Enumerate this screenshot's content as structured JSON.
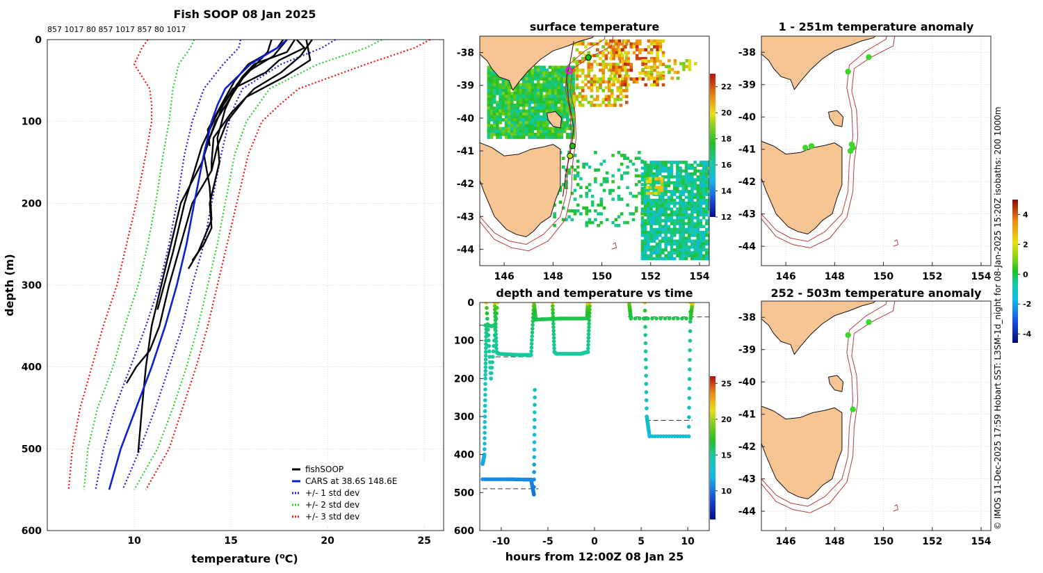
{
  "chart_data": [
    {
      "type": "line",
      "title": "Fish SOOP 08 Jan 2025",
      "top_labels": "857 1017 80 857 1017 857 80 1017",
      "xlabel": "temperature (",
      "xlabel_sup": "o",
      "xlabel_unit": "C)",
      "ylabel": "depth (m)",
      "xlim": [
        5.5,
        26
      ],
      "ylim": [
        600,
        0
      ],
      "xticks": [
        "10",
        "15",
        "20",
        "25"
      ],
      "yticks": [
        "0",
        "100",
        "200",
        "300",
        "400",
        "500",
        "600"
      ],
      "grid": true,
      "legend": [
        "fishSOOP",
        "CARS at 38.6S 148.6E",
        "+/- 1 std dev",
        "+/- 2 std dev",
        "+/- 3 std dev"
      ],
      "colors": {
        "fishsoop": "#000000",
        "cars": "#0a1fd6",
        "std1": "#1a1adf",
        "std2": "#22d422",
        "std3": "#f01010"
      },
      "depths": [
        0,
        10,
        30,
        60,
        80,
        100,
        140,
        200,
        250,
        300,
        350,
        400,
        450,
        500,
        550
      ],
      "cars_mean": [
        17.9,
        17.4,
        16.0,
        14.7,
        14.3,
        14.0,
        13.6,
        13.1,
        12.7,
        12.2,
        11.6,
        10.9,
        10.1,
        9.3,
        8.7
      ],
      "std1_low": [
        15.5,
        15.4,
        14.6,
        13.6,
        13.3,
        13.0,
        12.6,
        12.2,
        11.8,
        11.3,
        10.6,
        9.8,
        9.0,
        8.4,
        8.0
      ],
      "std1_high": [
        20.4,
        19.7,
        17.6,
        15.6,
        15.2,
        14.9,
        14.5,
        14.0,
        13.6,
        13.0,
        12.5,
        11.8,
        11.1,
        10.3,
        9.4
      ],
      "std2_low": [
        13.1,
        12.9,
        12.3,
        12.0,
        11.9,
        11.8,
        11.5,
        11.1,
        10.7,
        10.2,
        9.5,
        8.9,
        8.1,
        7.6,
        7.4
      ],
      "std2_high": [
        22.8,
        22.0,
        19.5,
        17.0,
        16.4,
        15.8,
        15.2,
        14.7,
        14.3,
        13.8,
        13.3,
        12.7,
        12.0,
        11.2,
        10.0
      ],
      "std3_low": [
        10.7,
        10.4,
        10.0,
        10.8,
        10.9,
        10.9,
        10.6,
        10.1,
        9.6,
        9.1,
        8.4,
        7.8,
        7.2,
        6.8,
        6.6
      ],
      "std3_high": [
        25.3,
        24.5,
        22.0,
        18.5,
        17.5,
        16.6,
        15.9,
        15.3,
        14.8,
        14.3,
        13.8,
        13.2,
        12.5,
        11.8,
        10.6
      ],
      "fishsoop": [
        {
          "depths": [
            0,
            10,
            30,
            50,
            80,
            110,
            130
          ],
          "temps": [
            17.7,
            17.4,
            15.9,
            15.2,
            14.5,
            13.8,
            13.9
          ]
        },
        {
          "depths": [
            0,
            15,
            30,
            45,
            80,
            120,
            150,
            200,
            250,
            300,
            350,
            400,
            450,
            505
          ],
          "temps": [
            18.3,
            17.9,
            16.2,
            15.6,
            14.6,
            13.9,
            13.5,
            12.4,
            11.9,
            11.4,
            10.9,
            10.6,
            10.4,
            10.2
          ]
        },
        {
          "depths": [
            0,
            10,
            25,
            40,
            60,
            90,
            130,
            200,
            260,
            330
          ],
          "temps": [
            18.4,
            18.8,
            17.5,
            16.8,
            15.1,
            14.3,
            13.5,
            12.6,
            12.0,
            11.2
          ]
        },
        {
          "depths": [
            0,
            20,
            40,
            60,
            90,
            120,
            150,
            160
          ],
          "temps": [
            19.2,
            18.6,
            17.6,
            16.2,
            15.0,
            14.1,
            14.0,
            14.0
          ]
        },
        {
          "depths": [
            0,
            25,
            45,
            70,
            100,
            130,
            160,
            200,
            250,
            300,
            350,
            380,
            400,
            420
          ],
          "temps": [
            18.9,
            19.1,
            17.8,
            15.8,
            14.8,
            14.3,
            14.0,
            13.0,
            12.4,
            11.8,
            11.3,
            10.8,
            10.1,
            9.6
          ]
        },
        {
          "depths": [
            0,
            15,
            35,
            55,
            85,
            120,
            150,
            200,
            230,
            250,
            270
          ],
          "temps": [
            17.1,
            16.9,
            16.1,
            15.3,
            14.7,
            14.3,
            14.4,
            13.9,
            14.0,
            13.6,
            13.0
          ]
        },
        {
          "depths": [
            0,
            20,
            40,
            70,
            100,
            140,
            180,
            220,
            260,
            280
          ],
          "temps": [
            17.9,
            17.2,
            15.8,
            15.0,
            14.2,
            13.6,
            13.9,
            14.0,
            13.3,
            12.8
          ]
        }
      ]
    },
    {
      "type": "heatmap",
      "title": "surface temperature",
      "xticks": [
        "146",
        "148",
        "150",
        "152",
        "154"
      ],
      "yticks": [
        "-38",
        "-39",
        "-40",
        "-41",
        "-42",
        "-43",
        "-44"
      ],
      "xlim": [
        145,
        154.4
      ],
      "ylim": [
        -44.5,
        -37.5
      ],
      "colorbar_ticks": [
        "12",
        "14",
        "16",
        "18",
        "20",
        "22"
      ],
      "colorbar_range": [
        12,
        23
      ],
      "track": [
        [
          148.85,
          -37.65
        ],
        [
          148.7,
          -38.3
        ],
        [
          148.55,
          -38.8
        ],
        [
          148.65,
          -39.5
        ],
        [
          148.85,
          -40.3
        ],
        [
          148.75,
          -40.9
        ],
        [
          148.55,
          -41.6
        ],
        [
          148.4,
          -42.4
        ]
      ],
      "stations": [
        [
          149.45,
          -38.15,
          "#10c010"
        ],
        [
          148.65,
          -38.55,
          "#ff00ff"
        ],
        [
          148.8,
          -40.85,
          "#22c022"
        ],
        [
          148.7,
          -41.15,
          "#b8e000"
        ]
      ]
    },
    {
      "type": "scatter",
      "title": "depth and temperature vs time",
      "xlabel": "hours from 12:00Z 08 Jan 25",
      "xticks": [
        "-10",
        "-5",
        "0",
        "5",
        "10"
      ],
      "yticks": [
        "0",
        "100",
        "200",
        "300",
        "400",
        "500",
        "600"
      ],
      "xlim": [
        -12.3,
        12.3
      ],
      "ylim": [
        600,
        0
      ],
      "colorbar_ticks": [
        "10",
        "15",
        "20",
        "25"
      ],
      "colorbar_range": [
        6,
        26
      ],
      "segments": [
        {
          "t": [
            -12.0,
            -11.8,
            -11.7,
            -11.6
          ],
          "d": [
            425,
            400,
            200,
            60
          ]
        },
        {
          "t": [
            -11.7,
            -11.0,
            -10.7
          ],
          "d": [
            60,
            62,
            60
          ]
        },
        {
          "t": [
            -11.6,
            -11.1,
            -10.4
          ],
          "d": [
            0,
            200,
            0
          ]
        },
        {
          "t": [
            -12.0,
            -9.0,
            -6.8,
            -6.5,
            -6.4
          ],
          "d": [
            465,
            465,
            466,
            505,
            230
          ]
        },
        {
          "t": [
            -10.7,
            -10.5,
            -10.3,
            -8.0,
            -6.8,
            -6.5
          ],
          "d": [
            0,
            130,
            135,
            138,
            138,
            0
          ]
        },
        {
          "t": [
            -6.5,
            -6.3,
            -3.5,
            -0.8,
            -0.7
          ],
          "d": [
            0,
            45,
            42,
            42,
            0
          ]
        },
        {
          "t": [
            -4.5,
            -4.3,
            -4.1,
            -1.5,
            -0.7,
            -0.5
          ],
          "d": [
            0,
            130,
            135,
            135,
            130,
            0
          ]
        },
        {
          "t": [
            3.7,
            3.9,
            10.3,
            10.5
          ],
          "d": [
            0,
            42,
            42,
            0
          ]
        },
        {
          "t": [
            5.4,
            5.6,
            5.9,
            10.1,
            10.3
          ],
          "d": [
            0,
            300,
            352,
            352,
            0
          ]
        }
      ],
      "reference_lines": [
        {
          "t": [
            -12.3,
            -10.6
          ],
          "d": 60
        },
        {
          "t": [
            -10.6,
            -6.5
          ],
          "d": 143
        },
        {
          "t": [
            -6.6,
            -3.0
          ],
          "d": 40
        },
        {
          "t": [
            -4.2,
            -0.5
          ],
          "d": 132
        },
        {
          "t": [
            -12.0,
            -6.0
          ],
          "d": 490
        },
        {
          "t": [
            3.6,
            12.3
          ],
          "d": 38
        },
        {
          "t": [
            5.5,
            10.5
          ],
          "d": 310
        }
      ]
    },
    {
      "type": "heatmap",
      "title": "1 - 251m temperature anomaly",
      "xticks": [
        "146",
        "148",
        "150",
        "152",
        "154"
      ],
      "yticks": [
        "-38",
        "-39",
        "-40",
        "-41",
        "-42",
        "-43",
        "-44"
      ],
      "xlim": [
        145,
        154.4
      ],
      "ylim": [
        -44.6,
        -37.5
      ],
      "points": [
        [
          149.4,
          -38.15
        ],
        [
          148.55,
          -38.6
        ],
        [
          146.8,
          -40.95
        ],
        [
          147.05,
          -40.9
        ],
        [
          148.7,
          -40.85
        ],
        [
          148.75,
          -40.95
        ],
        [
          148.65,
          -41.05
        ]
      ]
    },
    {
      "type": "heatmap",
      "title": "252 - 503m temperature anomaly",
      "xticks": [
        "146",
        "148",
        "150",
        "152",
        "154"
      ],
      "yticks": [
        "-38",
        "-39",
        "-40",
        "-41",
        "-42",
        "-43",
        "-44"
      ],
      "xlim": [
        145,
        154.4
      ],
      "ylim": [
        -44.6,
        -37.5
      ],
      "points": [
        [
          149.4,
          -38.15
        ],
        [
          148.55,
          -38.55
        ],
        [
          148.75,
          -40.85
        ]
      ],
      "colorbar_ticks": [
        "4",
        "2",
        "0",
        "-2",
        "-4"
      ],
      "colorbar_range": [
        -4.6,
        5.0
      ]
    }
  ],
  "side_caption": "© IMOS 11-Dec-2025 17:59 Hobart SST: L3SM-1d_night for 08-Jan-2025 15:20Z isobaths: 200  1000m"
}
